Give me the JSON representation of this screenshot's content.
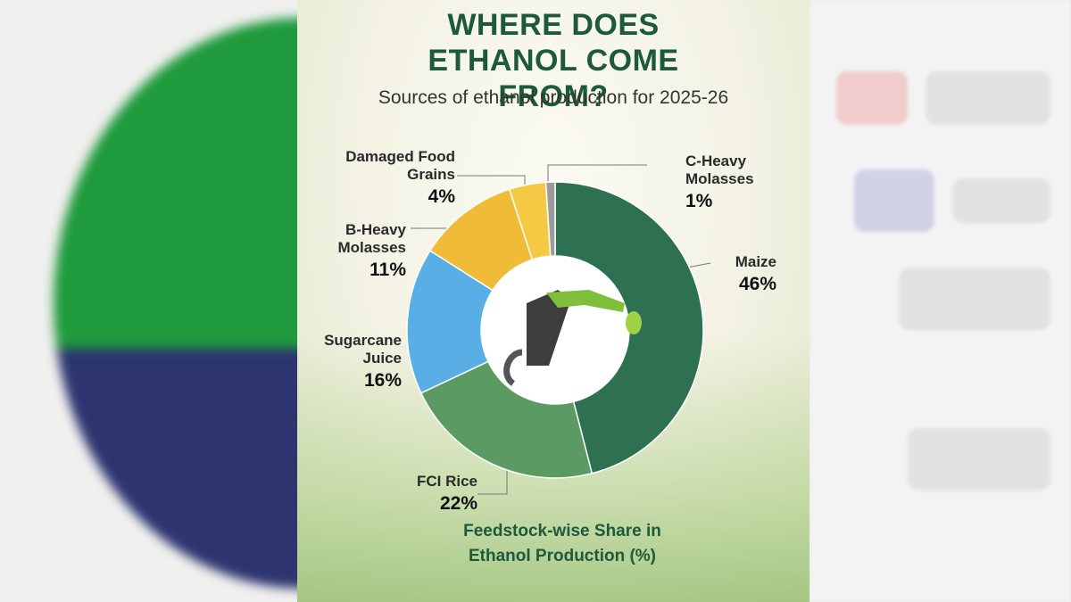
{
  "chart_data": {
    "type": "donut",
    "title": "WHERE DOES ETHANOL COME FROM?",
    "subtitle": "Sources of ethanol production for 2025-26",
    "footer": "Feedstock-wise Share in Ethanol Production (%)",
    "categories": [
      "Maize",
      "FCI Rice",
      "Sugarcane Juice",
      "B-Heavy Molasses",
      "Damaged Food Grains",
      "C-Heavy Molasses"
    ],
    "values": [
      46,
      22,
      16,
      11,
      4,
      1
    ],
    "value_labels": [
      "46%",
      "22%",
      "16%",
      "11%",
      "4%",
      "1%"
    ],
    "colors": [
      "#2d7152",
      "#5b9b63",
      "#58aee5",
      "#f0bb36",
      "#f6c945",
      "#9c9c9c"
    ]
  }
}
